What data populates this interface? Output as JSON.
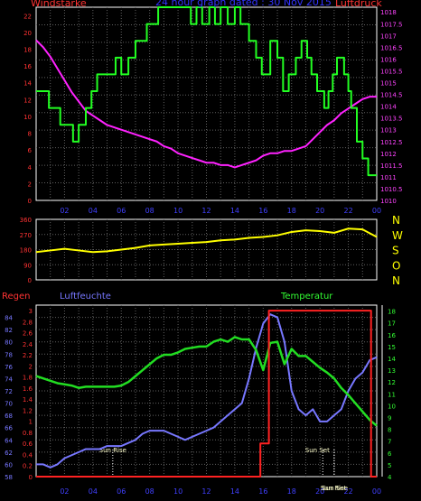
{
  "header": {
    "title": "24 hour graph dated : 30 Nov 2015",
    "left_label": "Windstärke",
    "right_label": "Luftdruck"
  },
  "colors": {
    "background": "#000000",
    "frame": "#ffffff",
    "grid": "#606060",
    "wind": "#22ff22",
    "pressure": "#ff22ff",
    "direction": "#ffff00",
    "humidity": "#7777ff",
    "temperature": "#22dd22",
    "rain": "#ff2222",
    "left_axis_top": "#ff3333",
    "right_axis_top": "#ff44ff",
    "compass": "#ffff00",
    "temp_axis": "#33ff33",
    "humidity_axis": "#7777ff",
    "rain_axis": "#ff3333",
    "label_blue": "#3333ff",
    "time_label": "#4040ff",
    "sun_label": "#ffffcc"
  },
  "chart_data": [
    {
      "type": "line",
      "title": "24 hour graph dated : 30 Nov 2015",
      "x_tick_labels": [
        "02",
        "04",
        "06",
        "08",
        "10",
        "12",
        "14",
        "16",
        "18",
        "20",
        "22",
        "00"
      ],
      "x_range": [
        0,
        24
      ],
      "y_left": {
        "label": "Windstärke",
        "range": [
          0,
          23
        ],
        "ticks": [
          0,
          2,
          4,
          6,
          8,
          10,
          12,
          14,
          16,
          18,
          20,
          22
        ]
      },
      "y_right": {
        "label": "Luftdruck",
        "range": [
          1010,
          1018.2
        ],
        "ticks": [
          "1010",
          "1010.5",
          "1011",
          "1011.5",
          "1012",
          "1012.5",
          "1013",
          "1013.5",
          "1014",
          "1014.5",
          "1015",
          "1015.5",
          "1016",
          "1016.5",
          "1017",
          "1017.5",
          "1018"
        ]
      },
      "grid": true,
      "series": [
        {
          "name": "Windstärke",
          "axis": "left",
          "step": true,
          "x": [
            0,
            0.9,
            1.7,
            2.6,
            3.0,
            3.5,
            3.9,
            4.3,
            5.6,
            6.0,
            6.5,
            7.0,
            7.8,
            8.6,
            10.3,
            10.9,
            11.3,
            11.7,
            12.2,
            12.6,
            13.0,
            13.5,
            14.0,
            14.4,
            15.0,
            15.5,
            15.9,
            16.5,
            17.0,
            17.4,
            17.8,
            18.3,
            18.7,
            19.1,
            19.4,
            19.8,
            20.3,
            20.6,
            20.9,
            21.2,
            21.7,
            22.0,
            22.2,
            22.6,
            23.0,
            23.4,
            24
          ],
          "y": [
            13,
            11,
            9,
            7,
            9,
            11,
            13,
            15,
            17,
            15,
            17,
            19,
            21,
            23,
            23,
            21,
            23,
            21,
            23,
            21,
            23,
            21,
            23,
            21,
            19,
            17,
            15,
            19,
            17,
            13,
            15,
            17,
            19,
            17,
            15,
            13,
            11,
            13,
            15,
            17,
            15,
            13,
            11,
            7,
            5,
            3,
            3
          ]
        },
        {
          "name": "Luftdruck",
          "axis": "right",
          "x": [
            0,
            0.5,
            1,
            1.5,
            2,
            2.5,
            3,
            3.5,
            4,
            4.5,
            5,
            5.5,
            6,
            6.5,
            7,
            7.5,
            8,
            8.5,
            9,
            9.5,
            10,
            10.5,
            11,
            11.5,
            12,
            12.5,
            13,
            13.5,
            14,
            14.5,
            15,
            15.5,
            16,
            16.5,
            17,
            17.5,
            18,
            18.5,
            19,
            19.5,
            20,
            20.5,
            21,
            21.5,
            22,
            22.5,
            23,
            23.5,
            24
          ],
          "y": [
            1016.8,
            1016.5,
            1016.1,
            1015.6,
            1015.1,
            1014.6,
            1014.2,
            1013.8,
            1013.6,
            1013.4,
            1013.2,
            1013.1,
            1013.0,
            1012.9,
            1012.8,
            1012.7,
            1012.6,
            1012.5,
            1012.3,
            1012.2,
            1012.0,
            1011.9,
            1011.8,
            1011.7,
            1011.6,
            1011.6,
            1011.5,
            1011.5,
            1011.4,
            1011.5,
            1011.6,
            1011.7,
            1011.9,
            1012.0,
            1012.0,
            1012.1,
            1012.1,
            1012.2,
            1012.3,
            1012.6,
            1012.9,
            1013.2,
            1013.4,
            1013.7,
            1013.9,
            1014.1,
            1014.3,
            1014.4,
            1014.4
          ]
        }
      ]
    },
    {
      "type": "line",
      "title": "",
      "x_range": [
        0,
        24
      ],
      "y_left": {
        "label": "",
        "range": [
          0,
          360
        ],
        "ticks": [
          0,
          90,
          180,
          270,
          360
        ]
      },
      "y_right": {
        "label": "",
        "ticks": [
          "N",
          "W",
          "S",
          "O",
          "N"
        ]
      },
      "grid": true,
      "series": [
        {
          "name": "",
          "x": [
            0,
            1,
            2,
            3,
            4,
            5,
            6,
            7,
            8,
            9,
            10,
            11,
            12,
            13,
            14,
            15,
            16,
            17,
            18,
            19,
            20,
            21,
            22,
            23,
            24
          ],
          "y": [
            165,
            175,
            185,
            175,
            165,
            170,
            180,
            190,
            205,
            210,
            215,
            220,
            225,
            235,
            240,
            250,
            255,
            265,
            285,
            295,
            290,
            280,
            305,
            300,
            255
          ]
        }
      ]
    },
    {
      "type": "line",
      "title": "",
      "x_range": [
        0,
        24
      ],
      "x_tick_labels": [
        "02",
        "04",
        "06",
        "08",
        "10",
        "12",
        "14",
        "16",
        "18",
        "20",
        "22",
        "00"
      ],
      "grid": true,
      "axes": {
        "rain": {
          "label": "Regen",
          "range": [
            0,
            3.1
          ],
          "ticks": [
            "0",
            "0.2",
            "0.4",
            "0.6",
            "0.8",
            "1",
            "1.2",
            "1.4",
            "1.6",
            "1.8",
            "2",
            "2.2",
            "2.4",
            "2.6",
            "2.8",
            "3"
          ]
        },
        "humidity": {
          "label": "Luftfeuchte",
          "range": [
            58,
            86
          ],
          "ticks": [
            58,
            60,
            62,
            64,
            66,
            68,
            70,
            72,
            74,
            76,
            78,
            80,
            82,
            84
          ]
        },
        "temperature": {
          "label": "Temperatur",
          "range": [
            4,
            18.5
          ],
          "ticks": [
            4,
            5,
            6,
            7,
            8,
            9,
            10,
            11,
            12,
            13,
            14,
            15,
            16,
            17,
            18
          ]
        }
      },
      "annotations": [
        {
          "text": "Sun Rise",
          "x": 5.4
        },
        {
          "text": "Sun Set",
          "x": 20.2
        },
        {
          "text": "Sun Set",
          "x": 21.0
        },
        {
          "text": "Sun Rise",
          "x": 21.0
        }
      ],
      "series": [
        {
          "name": "Regen",
          "axis": "rain",
          "step": true,
          "x": [
            0,
            15.2,
            15.8,
            16.4,
            23.6,
            23.6,
            24
          ],
          "y": [
            0,
            0,
            0.6,
            3.0,
            3.0,
            0,
            0
          ]
        },
        {
          "name": "Luftfeuchte",
          "axis": "humidity",
          "x": [
            0,
            0.5,
            1,
            1.5,
            2,
            2.5,
            3,
            3.5,
            4,
            4.5,
            5,
            5.5,
            6,
            6.5,
            7,
            7.5,
            8,
            8.5,
            9,
            9.5,
            10,
            10.5,
            11,
            11.5,
            12,
            12.5,
            13,
            13.5,
            14,
            14.5,
            15,
            15.5,
            16,
            16.5,
            17,
            17.5,
            18,
            18.5,
            19,
            19.5,
            20,
            20.5,
            21,
            21.5,
            22,
            22.5,
            23,
            23.5,
            24
          ],
          "y": [
            60,
            60,
            59.5,
            60,
            61,
            61.5,
            62,
            62.5,
            62.5,
            62.5,
            63,
            63,
            63,
            63.5,
            64,
            65,
            65.5,
            65.5,
            65.5,
            65,
            64.5,
            64,
            64.5,
            65,
            65.5,
            66,
            67,
            68,
            69,
            70,
            74,
            79,
            83,
            84.5,
            84,
            80,
            72,
            69,
            68,
            69,
            67,
            67,
            68,
            69,
            72,
            74,
            75,
            77,
            77.5
          ]
        },
        {
          "name": "Temperatur",
          "axis": "temperature",
          "x": [
            0,
            0.5,
            1,
            1.5,
            2,
            2.5,
            3,
            3.5,
            4,
            4.5,
            5,
            5.5,
            6,
            6.5,
            7,
            7.5,
            8,
            8.5,
            9,
            9.5,
            10,
            10.5,
            11,
            11.5,
            12,
            12.5,
            13,
            13.5,
            14,
            14.5,
            15,
            15.5,
            16,
            16.5,
            17,
            17.5,
            18,
            18.5,
            19,
            19.5,
            20,
            20.5,
            21,
            21.5,
            22,
            22.5,
            23,
            23.5,
            24
          ],
          "y": [
            12.5,
            12.3,
            12.1,
            11.9,
            11.8,
            11.7,
            11.5,
            11.6,
            11.6,
            11.6,
            11.6,
            11.6,
            11.7,
            12.0,
            12.5,
            13.0,
            13.5,
            14.0,
            14.3,
            14.3,
            14.5,
            14.8,
            14.9,
            15.0,
            15.0,
            15.4,
            15.6,
            15.4,
            15.8,
            15.6,
            15.6,
            14.7,
            13.0,
            15.3,
            15.4,
            13.5,
            14.8,
            14.2,
            14.2,
            13.7,
            13.2,
            12.8,
            12.3,
            11.5,
            10.9,
            10.2,
            9.5,
            8.8,
            8.3
          ]
        }
      ]
    }
  ]
}
